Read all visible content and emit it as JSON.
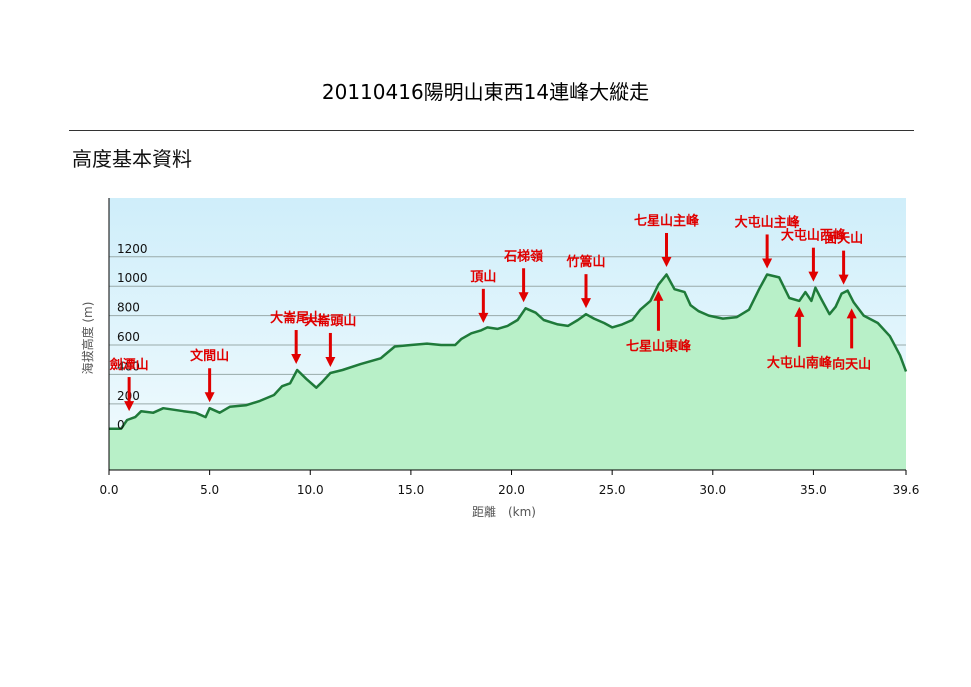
{
  "title": "20110416陽明山東西14連峰大縱走",
  "section_title": "高度基本資料",
  "chart_data": {
    "type": "area",
    "xlabel": "距離　(km)",
    "ylabel": "海拔高度 (m)",
    "xlim": [
      0,
      39.6
    ],
    "ylim": [
      -250,
      1600
    ],
    "x_ticks": [
      "0.0",
      "5.0",
      "10.0",
      "15.0",
      "20.0",
      "25.0",
      "30.0",
      "35.0",
      "39.6"
    ],
    "y_ticks": [
      "0",
      "200",
      "400",
      "600",
      "800",
      "1000",
      "1200"
    ],
    "colors": {
      "fill": "#b8f0c8",
      "line": "#1f7a3a",
      "sky": "#d2eef8",
      "arrow": "#e00000"
    },
    "series": [
      {
        "points": [
          [
            0,
            30
          ],
          [
            0.6,
            30
          ],
          [
            0.9,
            90
          ],
          [
            1.3,
            110
          ],
          [
            1.6,
            150
          ],
          [
            2.2,
            140
          ],
          [
            2.7,
            170
          ],
          [
            3.2,
            160
          ],
          [
            3.7,
            150
          ],
          [
            4.3,
            140
          ],
          [
            4.8,
            110
          ],
          [
            5.0,
            170
          ],
          [
            5.5,
            140
          ],
          [
            6.0,
            180
          ],
          [
            6.8,
            190
          ],
          [
            7.5,
            220
          ],
          [
            8.2,
            260
          ],
          [
            8.6,
            320
          ],
          [
            9.0,
            340
          ],
          [
            9.35,
            430
          ],
          [
            9.8,
            370
          ],
          [
            10.3,
            310
          ],
          [
            10.6,
            350
          ],
          [
            11.0,
            410
          ],
          [
            11.6,
            430
          ],
          [
            12.5,
            470
          ],
          [
            13.5,
            510
          ],
          [
            14.2,
            590
          ],
          [
            15.0,
            600
          ],
          [
            15.8,
            610
          ],
          [
            16.5,
            600
          ],
          [
            17.2,
            600
          ],
          [
            17.5,
            640
          ],
          [
            18.0,
            680
          ],
          [
            18.5,
            700
          ],
          [
            18.8,
            720
          ],
          [
            19.3,
            710
          ],
          [
            19.8,
            730
          ],
          [
            20.3,
            770
          ],
          [
            20.7,
            850
          ],
          [
            21.2,
            820
          ],
          [
            21.6,
            770
          ],
          [
            22.3,
            740
          ],
          [
            22.8,
            730
          ],
          [
            23.3,
            770
          ],
          [
            23.7,
            810
          ],
          [
            24.1,
            780
          ],
          [
            24.6,
            750
          ],
          [
            25.0,
            720
          ],
          [
            25.5,
            740
          ],
          [
            26.0,
            770
          ],
          [
            26.4,
            840
          ],
          [
            26.9,
            900
          ],
          [
            27.3,
            1010
          ],
          [
            27.7,
            1080
          ],
          [
            28.1,
            980
          ],
          [
            28.6,
            960
          ],
          [
            28.9,
            870
          ],
          [
            29.3,
            830
          ],
          [
            29.8,
            800
          ],
          [
            30.5,
            780
          ],
          [
            31.2,
            790
          ],
          [
            31.8,
            840
          ],
          [
            32.3,
            980
          ],
          [
            32.7,
            1080
          ],
          [
            33.3,
            1060
          ],
          [
            33.8,
            920
          ],
          [
            34.3,
            900
          ],
          [
            34.6,
            960
          ],
          [
            34.9,
            900
          ],
          [
            35.1,
            990
          ],
          [
            35.4,
            910
          ],
          [
            35.8,
            810
          ],
          [
            36.1,
            860
          ],
          [
            36.4,
            950
          ],
          [
            36.7,
            970
          ],
          [
            37.0,
            890
          ],
          [
            37.5,
            800
          ],
          [
            38.2,
            750
          ],
          [
            38.8,
            660
          ],
          [
            39.3,
            530
          ],
          [
            39.6,
            420
          ]
        ]
      }
    ],
    "annotations": [
      {
        "label": "劍潭山",
        "x": 1.0,
        "y": 110,
        "dir": "down"
      },
      {
        "label": "文間山",
        "x": 5.0,
        "y": 170,
        "dir": "down"
      },
      {
        "label": "大崙尾山",
        "x": 9.3,
        "y": 430,
        "dir": "down"
      },
      {
        "label": "大崙頭山",
        "x": 11.0,
        "y": 410,
        "dir": "down"
      },
      {
        "label": "頂山",
        "x": 18.6,
        "y": 710,
        "dir": "down"
      },
      {
        "label": "石梯嶺",
        "x": 20.6,
        "y": 850,
        "dir": "down"
      },
      {
        "label": "竹篙山",
        "x": 23.7,
        "y": 810,
        "dir": "down"
      },
      {
        "label": "七星山主峰",
        "x": 27.7,
        "y": 1090,
        "dir": "down"
      },
      {
        "label": "七星山東峰",
        "x": 27.3,
        "y": 1010,
        "dir": "up"
      },
      {
        "label": "大屯山主峰",
        "x": 32.7,
        "y": 1080,
        "dir": "down"
      },
      {
        "label": "大屯山西峰",
        "x": 35.0,
        "y": 990,
        "dir": "down"
      },
      {
        "label": "大屯山南峰",
        "x": 34.3,
        "y": 900,
        "dir": "up"
      },
      {
        "label": "面天山",
        "x": 36.5,
        "y": 970,
        "dir": "down"
      },
      {
        "label": "向天山",
        "x": 36.9,
        "y": 890,
        "dir": "up"
      }
    ]
  }
}
